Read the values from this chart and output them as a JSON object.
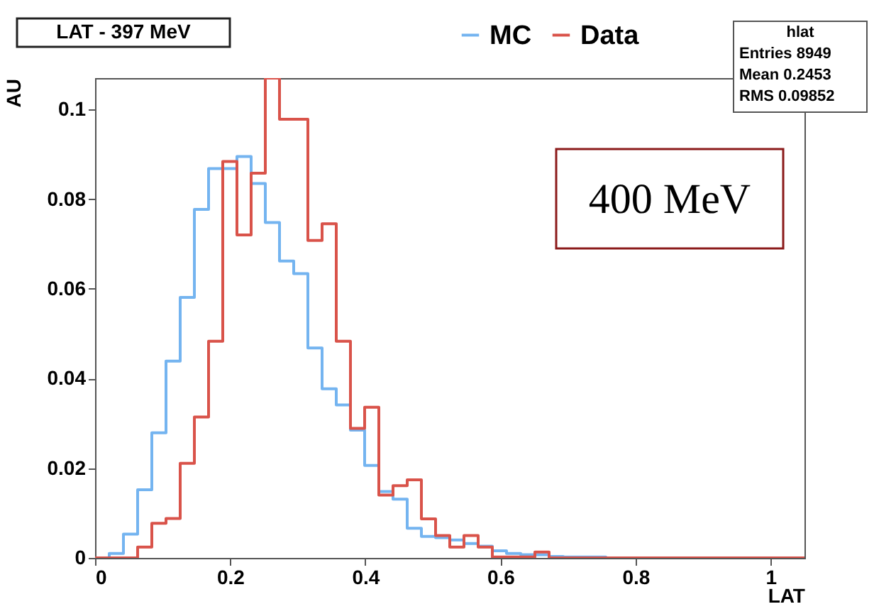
{
  "chart_data": {
    "type": "histogram",
    "title": "LAT - 397 MeV",
    "xlabel": "LAT",
    "ylabel": "AU",
    "bins": [
      0,
      0.021,
      0.042,
      0.063,
      0.084,
      0.105,
      0.126,
      0.147,
      0.168,
      0.189,
      0.21,
      0.231,
      0.252,
      0.273,
      0.294,
      0.315,
      0.336,
      0.357,
      0.378,
      0.399,
      0.42,
      0.441,
      0.462,
      0.483,
      0.504,
      0.525,
      0.546,
      0.567,
      0.588,
      0.609,
      0.63,
      0.651,
      0.672,
      0.693,
      0.714,
      0.735,
      0.756,
      0.777,
      0.798,
      0.819,
      0.84,
      0.861,
      0.882,
      0.903,
      0.924,
      0.945,
      0.966,
      0.987,
      1.008,
      1.029,
      1.05
    ],
    "series": [
      {
        "name": "MC",
        "color": "#74b4f0",
        "values": [
          0,
          0.001,
          0.0053,
          0.0152,
          0.0279,
          0.0439,
          0.0581,
          0.0777,
          0.0868,
          0.0868,
          0.0895,
          0.0835,
          0.0748,
          0.0662,
          0.0634,
          0.0468,
          0.0377,
          0.0341,
          0.0285,
          0.0206,
          0.0148,
          0.0131,
          0.0066,
          0.0048,
          0.0045,
          0.004,
          0.0032,
          0.0026,
          0.0016,
          0.001,
          0.0007,
          0.0007,
          0.0003,
          0.0002,
          0.0002,
          0.0002,
          0,
          0,
          0,
          0,
          0,
          0,
          0,
          0,
          0,
          0,
          0,
          0,
          0,
          0
        ]
      },
      {
        "name": "Data",
        "color": "#d9534a",
        "values": [
          0,
          0,
          0,
          0.0024,
          0.0077,
          0.0088,
          0.0211,
          0.0314,
          0.0483,
          0.0884,
          0.072,
          0.0858,
          0.107,
          0.0978,
          0.0978,
          0.0708,
          0.0745,
          0.0483,
          0.0289,
          0.0336,
          0.014,
          0.0161,
          0.0174,
          0.0087,
          0.005,
          0.0024,
          0.005,
          0.0024,
          0.0002,
          0.0002,
          0.0002,
          0.0013,
          0,
          0,
          0,
          0,
          0,
          0,
          0,
          0,
          0,
          0,
          0,
          0,
          0,
          0,
          0,
          0,
          0,
          0
        ]
      }
    ],
    "xlim": [
      0,
      1.05
    ],
    "xticks": [
      0,
      0.2,
      0.4,
      0.6,
      0.8,
      1
    ],
    "ylim": [
      0,
      0.107
    ],
    "yticks": [
      0,
      0.02,
      0.04,
      0.06,
      0.08,
      0.1
    ],
    "grid": false,
    "legend": "top right",
    "annotations": [
      "hlat",
      "Entries 8949",
      "Mean 0.2453",
      "RMS 0.09852",
      "400 MeV"
    ]
  }
}
